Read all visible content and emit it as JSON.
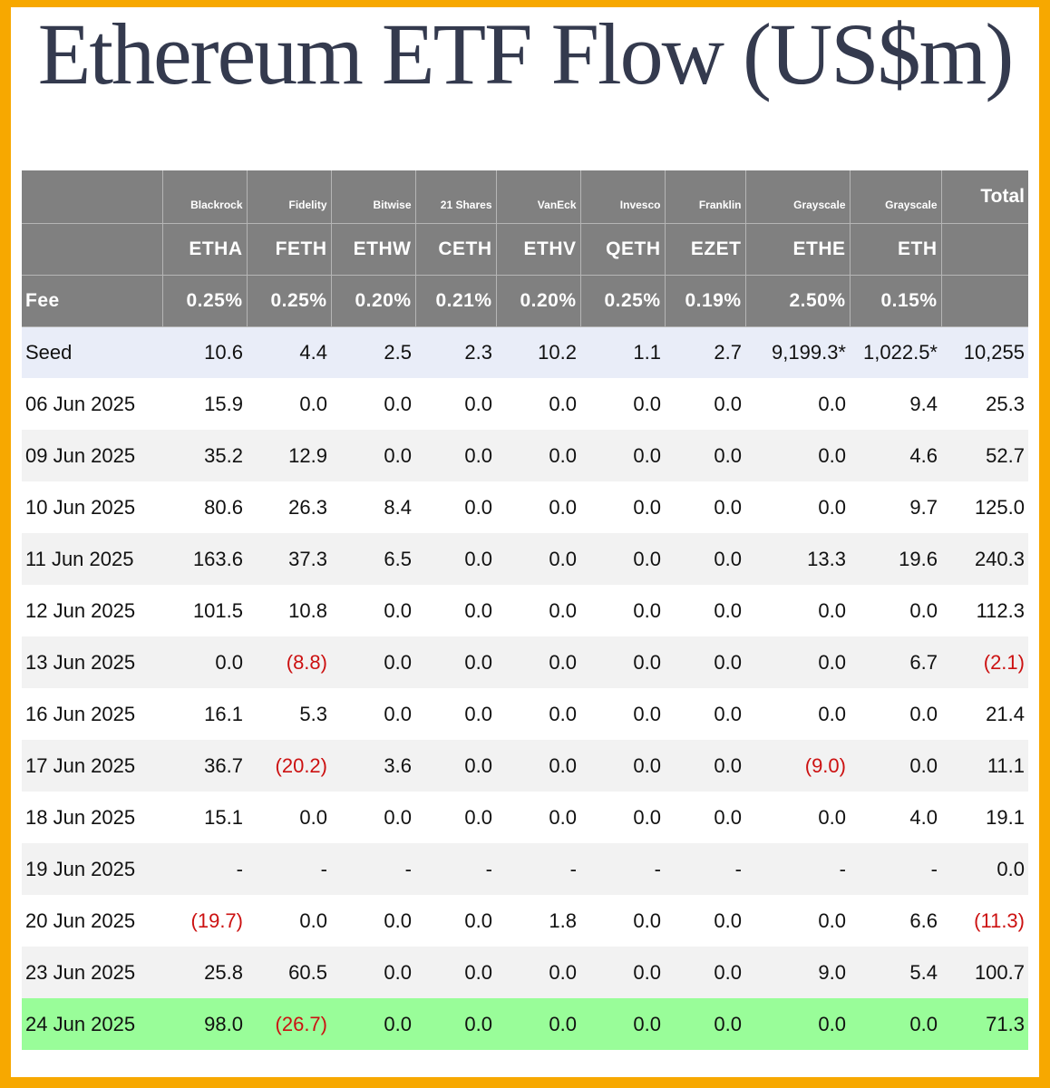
{
  "title": "Ethereum ETF Flow (US$m)",
  "colors": {
    "border": "#f7a800",
    "header_bg": "#808080",
    "negative": "#cc1111",
    "latest_row": "#99fd99",
    "seed_row": "#e9edf8"
  },
  "header": {
    "issuers": [
      "Blackrock",
      "Fidelity",
      "Bitwise",
      "21 Shares",
      "VanEck",
      "Invesco",
      "Franklin",
      "Grayscale",
      "Grayscale"
    ],
    "total_label": "Total",
    "tickers": [
      "ETHA",
      "FETH",
      "ETHW",
      "CETH",
      "ETHV",
      "QETH",
      "EZET",
      "ETHE",
      "ETH"
    ],
    "fee_label": "Fee",
    "fees": [
      "0.25%",
      "0.25%",
      "0.20%",
      "0.21%",
      "0.20%",
      "0.25%",
      "0.19%",
      "2.50%",
      "0.15%"
    ]
  },
  "seed": {
    "label": "Seed",
    "values": [
      "10.6",
      "4.4",
      "2.5",
      "2.3",
      "10.2",
      "1.1",
      "2.7",
      "9,199.3*",
      "1,022.5*",
      "10,255"
    ]
  },
  "rows": [
    {
      "date": "06 Jun 2025",
      "values": [
        "15.9",
        "0.0",
        "0.0",
        "0.0",
        "0.0",
        "0.0",
        "0.0",
        "0.0",
        "9.4",
        "25.3"
      ]
    },
    {
      "date": "09 Jun 2025",
      "values": [
        "35.2",
        "12.9",
        "0.0",
        "0.0",
        "0.0",
        "0.0",
        "0.0",
        "0.0",
        "4.6",
        "52.7"
      ]
    },
    {
      "date": "10 Jun 2025",
      "values": [
        "80.6",
        "26.3",
        "8.4",
        "0.0",
        "0.0",
        "0.0",
        "0.0",
        "0.0",
        "9.7",
        "125.0"
      ]
    },
    {
      "date": "11 Jun 2025",
      "values": [
        "163.6",
        "37.3",
        "6.5",
        "0.0",
        "0.0",
        "0.0",
        "0.0",
        "13.3",
        "19.6",
        "240.3"
      ]
    },
    {
      "date": "12 Jun 2025",
      "values": [
        "101.5",
        "10.8",
        "0.0",
        "0.0",
        "0.0",
        "0.0",
        "0.0",
        "0.0",
        "0.0",
        "112.3"
      ]
    },
    {
      "date": "13 Jun 2025",
      "values": [
        "0.0",
        "(8.8)",
        "0.0",
        "0.0",
        "0.0",
        "0.0",
        "0.0",
        "0.0",
        "6.7",
        "(2.1)"
      ]
    },
    {
      "date": "16 Jun 2025",
      "values": [
        "16.1",
        "5.3",
        "0.0",
        "0.0",
        "0.0",
        "0.0",
        "0.0",
        "0.0",
        "0.0",
        "21.4"
      ]
    },
    {
      "date": "17 Jun 2025",
      "values": [
        "36.7",
        "(20.2)",
        "3.6",
        "0.0",
        "0.0",
        "0.0",
        "0.0",
        "(9.0)",
        "0.0",
        "11.1"
      ]
    },
    {
      "date": "18 Jun 2025",
      "values": [
        "15.1",
        "0.0",
        "0.0",
        "0.0",
        "0.0",
        "0.0",
        "0.0",
        "0.0",
        "4.0",
        "19.1"
      ]
    },
    {
      "date": "19 Jun 2025",
      "values": [
        "-",
        "-",
        "-",
        "-",
        "-",
        "-",
        "-",
        "-",
        "-",
        "0.0"
      ]
    },
    {
      "date": "20 Jun 2025",
      "values": [
        "(19.7)",
        "0.0",
        "0.0",
        "0.0",
        "1.8",
        "0.0",
        "0.0",
        "0.0",
        "6.6",
        "(11.3)"
      ]
    },
    {
      "date": "23 Jun 2025",
      "values": [
        "25.8",
        "60.5",
        "0.0",
        "0.0",
        "0.0",
        "0.0",
        "0.0",
        "9.0",
        "5.4",
        "100.7"
      ]
    },
    {
      "date": "24 Jun 2025",
      "values": [
        "98.0",
        "(26.7)",
        "0.0",
        "0.0",
        "0.0",
        "0.0",
        "0.0",
        "0.0",
        "0.0",
        "71.3"
      ]
    }
  ]
}
